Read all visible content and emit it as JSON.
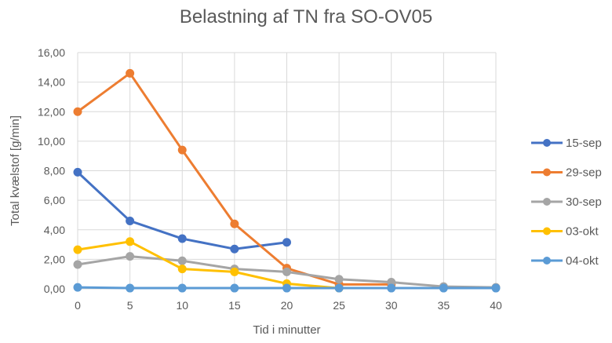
{
  "chart_data": {
    "type": "line",
    "title": "Belastning af TN fra SO-OV05",
    "xlabel": "Tid i minutter",
    "ylabel": "Total kvælstof [g/min]",
    "x": [
      0,
      5,
      10,
      15,
      20,
      25,
      30,
      35,
      40
    ],
    "xlim": [
      0,
      40
    ],
    "ylim": [
      0,
      16
    ],
    "x_ticks": [
      "0",
      "5",
      "10",
      "15",
      "20",
      "25",
      "30",
      "35",
      "40"
    ],
    "y_ticks": [
      "0,00",
      "2,00",
      "4,00",
      "6,00",
      "8,00",
      "10,00",
      "12,00",
      "14,00",
      "16,00"
    ],
    "grid": true,
    "legend_position": "right",
    "series": [
      {
        "name": "15-sep",
        "color": "#4472C4",
        "x": [
          0,
          5,
          10,
          15,
          20
        ],
        "values": [
          7.9,
          4.6,
          3.4,
          2.7,
          3.15
        ]
      },
      {
        "name": "29-sep",
        "color": "#ED7D31",
        "x": [
          0,
          5,
          10,
          15,
          20,
          25,
          30
        ],
        "values": [
          12.0,
          14.6,
          9.4,
          4.4,
          1.4,
          0.3,
          0.3
        ]
      },
      {
        "name": "30-sep",
        "color": "#A5A5A5",
        "x": [
          0,
          5,
          10,
          15,
          20,
          25,
          30,
          35,
          40
        ],
        "values": [
          1.65,
          2.2,
          1.9,
          1.35,
          1.15,
          0.65,
          0.45,
          0.15,
          0.1
        ]
      },
      {
        "name": "03-okt",
        "color": "#FFC000",
        "x": [
          0,
          5,
          10,
          15,
          20,
          25
        ],
        "values": [
          2.65,
          3.2,
          1.35,
          1.15,
          0.35,
          0.05
        ]
      },
      {
        "name": "04-okt",
        "color": "#5B9BD5",
        "x": [
          0,
          5,
          10,
          15,
          20,
          25,
          30,
          35,
          40
        ],
        "values": [
          0.1,
          0.05,
          0.05,
          0.05,
          0.05,
          0.05,
          0.05,
          0.05,
          0.05
        ]
      }
    ]
  }
}
